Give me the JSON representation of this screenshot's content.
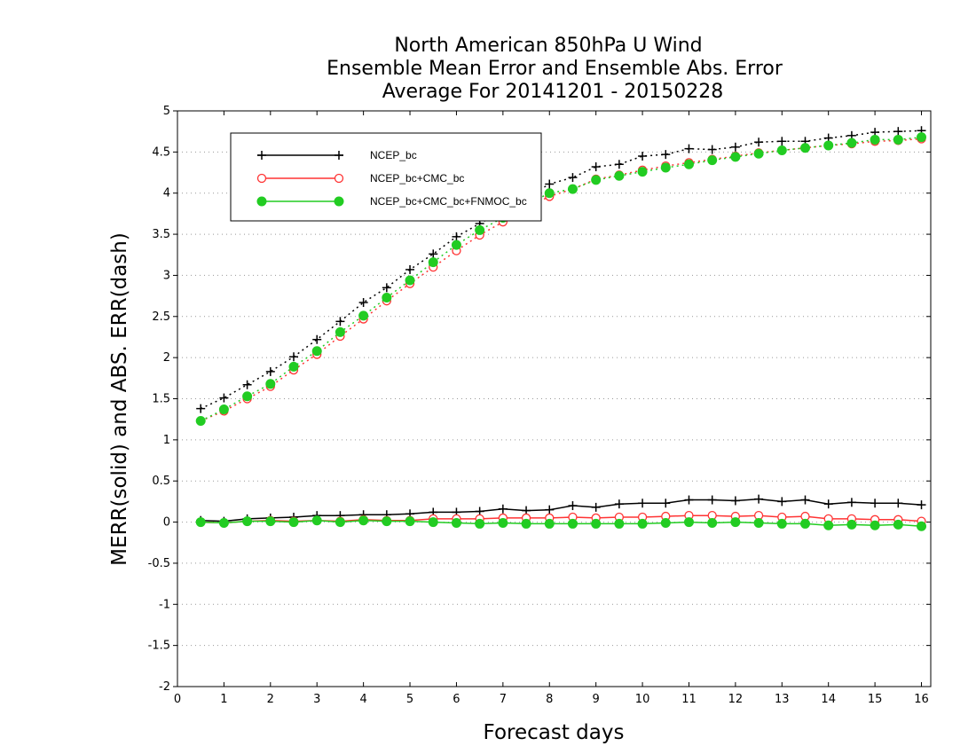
{
  "chart_data": {
    "type": "line",
    "title_lines": [
      "North American 850hPa U Wind",
      "Ensemble Mean Error and Ensemble Abs. Error",
      "Average For 20141201 - 20150228"
    ],
    "xlabel": "Forecast days",
    "ylabel": "MERR(solid) and ABS. ERR(dash)",
    "xlim": [
      0,
      16.2
    ],
    "ylim": [
      -2,
      5
    ],
    "xticks": [
      0,
      1,
      2,
      3,
      4,
      5,
      6,
      7,
      8,
      9,
      10,
      11,
      12,
      13,
      14,
      15,
      16
    ],
    "yticks": [
      -2,
      -1.5,
      -1,
      -0.5,
      0,
      0.5,
      1,
      1.5,
      2,
      2.5,
      3,
      3.5,
      4,
      4.5,
      5
    ],
    "grid": "horizontal-dotted",
    "legend_position": "top-left",
    "x": [
      0.5,
      1,
      1.5,
      2,
      2.5,
      3,
      3.5,
      4,
      4.5,
      5,
      5.5,
      6,
      6.5,
      7,
      7.5,
      8,
      8.5,
      9,
      9.5,
      10,
      10.5,
      11,
      11.5,
      12,
      12.5,
      13,
      13.5,
      14,
      14.5,
      15,
      15.5,
      16
    ],
    "series": [
      {
        "name": "NCEP_bc",
        "color": "#000000",
        "marker": "plus",
        "abs_err": [
          1.38,
          1.51,
          1.67,
          1.83,
          2.01,
          2.22,
          2.44,
          2.67,
          2.85,
          3.07,
          3.26,
          3.47,
          3.63,
          3.78,
          3.95,
          4.11,
          4.19,
          4.32,
          4.35,
          4.45,
          4.47,
          4.54,
          4.53,
          4.56,
          4.62,
          4.63,
          4.63,
          4.67,
          4.7,
          4.74,
          4.75,
          4.76
        ],
        "mean_err": [
          0.02,
          0.01,
          0.04,
          0.05,
          0.06,
          0.08,
          0.08,
          0.09,
          0.09,
          0.1,
          0.12,
          0.12,
          0.13,
          0.16,
          0.14,
          0.15,
          0.2,
          0.18,
          0.22,
          0.23,
          0.23,
          0.27,
          0.27,
          0.26,
          0.28,
          0.25,
          0.27,
          0.22,
          0.24,
          0.23,
          0.23,
          0.21
        ]
      },
      {
        "name": "NCEP_bc+CMC_bc",
        "color": "#ff3333",
        "marker": "open-circle",
        "abs_err": [
          1.23,
          1.35,
          1.5,
          1.65,
          1.85,
          2.04,
          2.26,
          2.47,
          2.69,
          2.9,
          3.1,
          3.3,
          3.49,
          3.65,
          3.82,
          3.96,
          4.05,
          4.17,
          4.22,
          4.28,
          4.33,
          4.37,
          4.41,
          4.45,
          4.49,
          4.52,
          4.55,
          4.58,
          4.6,
          4.63,
          4.64,
          4.66
        ],
        "mean_err": [
          0.0,
          -0.01,
          0.01,
          0.02,
          0.01,
          0.02,
          0.01,
          0.03,
          0.02,
          0.02,
          0.04,
          0.04,
          0.04,
          0.05,
          0.05,
          0.05,
          0.06,
          0.05,
          0.06,
          0.06,
          0.07,
          0.08,
          0.08,
          0.07,
          0.08,
          0.06,
          0.07,
          0.04,
          0.04,
          0.03,
          0.03,
          0.01
        ]
      },
      {
        "name": "NCEP_bc+CMC_bc+FNMOC_bc",
        "color": "#22cc22",
        "marker": "filled-circle",
        "abs_err": [
          1.23,
          1.37,
          1.53,
          1.68,
          1.89,
          2.08,
          2.31,
          2.51,
          2.73,
          2.94,
          3.16,
          3.37,
          3.55,
          3.7,
          3.86,
          4.0,
          4.05,
          4.16,
          4.21,
          4.26,
          4.31,
          4.35,
          4.4,
          4.44,
          4.48,
          4.52,
          4.55,
          4.58,
          4.61,
          4.65,
          4.65,
          4.68
        ],
        "mean_err": [
          0.0,
          -0.01,
          0.01,
          0.01,
          0.0,
          0.02,
          0.0,
          0.02,
          0.01,
          0.01,
          0.0,
          -0.01,
          -0.02,
          -0.01,
          -0.02,
          -0.02,
          -0.02,
          -0.02,
          -0.02,
          -0.02,
          -0.01,
          0.0,
          -0.01,
          0.0,
          -0.01,
          -0.02,
          -0.02,
          -0.04,
          -0.03,
          -0.04,
          -0.03,
          -0.05
        ]
      }
    ]
  }
}
